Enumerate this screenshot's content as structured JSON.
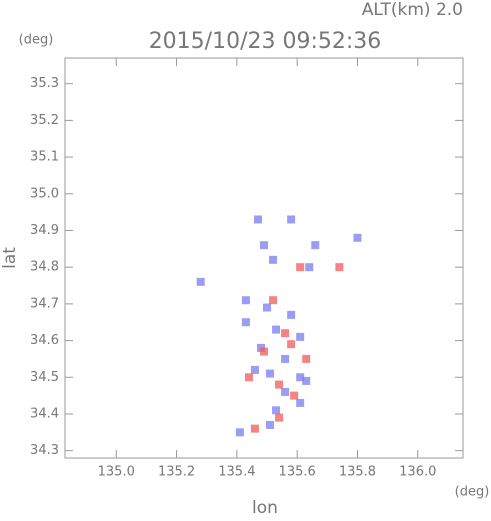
{
  "chart_data": {
    "type": "scatter",
    "title": "2015/10/23 09:52:36",
    "altitude_label": "ALT(km) 2.0",
    "x_label": "lon",
    "y_label": "lat",
    "x_unit": "(deg)",
    "y_unit": "(deg)",
    "xlim": [
      134.83,
      136.15
    ],
    "ylim": [
      34.28,
      35.37
    ],
    "xticks": [
      {
        "value": 135,
        "label": "135.0"
      },
      135.2,
      135.4,
      135.6,
      135.8,
      {
        "value": 136,
        "label": "136.0"
      }
    ],
    "yticks": [
      34.3,
      34.4,
      34.5,
      34.6,
      34.7,
      34.8,
      34.9,
      {
        "value": 35,
        "label": "35.0"
      },
      35.1,
      35.2,
      35.3
    ],
    "grid": false,
    "series": [
      {
        "color": "#7a7cf0",
        "x": [
          135.47,
          135.58,
          135.49,
          135.66,
          135.8,
          135.52,
          135.64,
          135.28,
          135.43,
          135.5,
          135.58,
          135.43,
          135.53,
          135.61,
          135.48,
          135.56,
          135.51,
          135.61,
          135.56,
          135.61,
          135.53,
          135.41,
          135.51,
          135.63,
          135.46
        ],
        "y": [
          34.93,
          34.93,
          34.86,
          34.86,
          34.88,
          34.82,
          34.8,
          34.76,
          34.71,
          34.69,
          34.67,
          34.65,
          34.63,
          34.61,
          34.58,
          34.55,
          34.51,
          34.5,
          34.46,
          34.43,
          34.41,
          34.35,
          34.37,
          34.49,
          34.52
        ]
      },
      {
        "color": "#f05a5a",
        "x": [
          135.61,
          135.74,
          135.52,
          135.56,
          135.58,
          135.44,
          135.54,
          135.59,
          135.54,
          135.46,
          135.49,
          135.63
        ],
        "y": [
          34.8,
          34.8,
          34.71,
          34.62,
          34.59,
          34.5,
          34.48,
          34.45,
          34.39,
          34.36,
          34.57,
          34.55
        ]
      }
    ]
  }
}
